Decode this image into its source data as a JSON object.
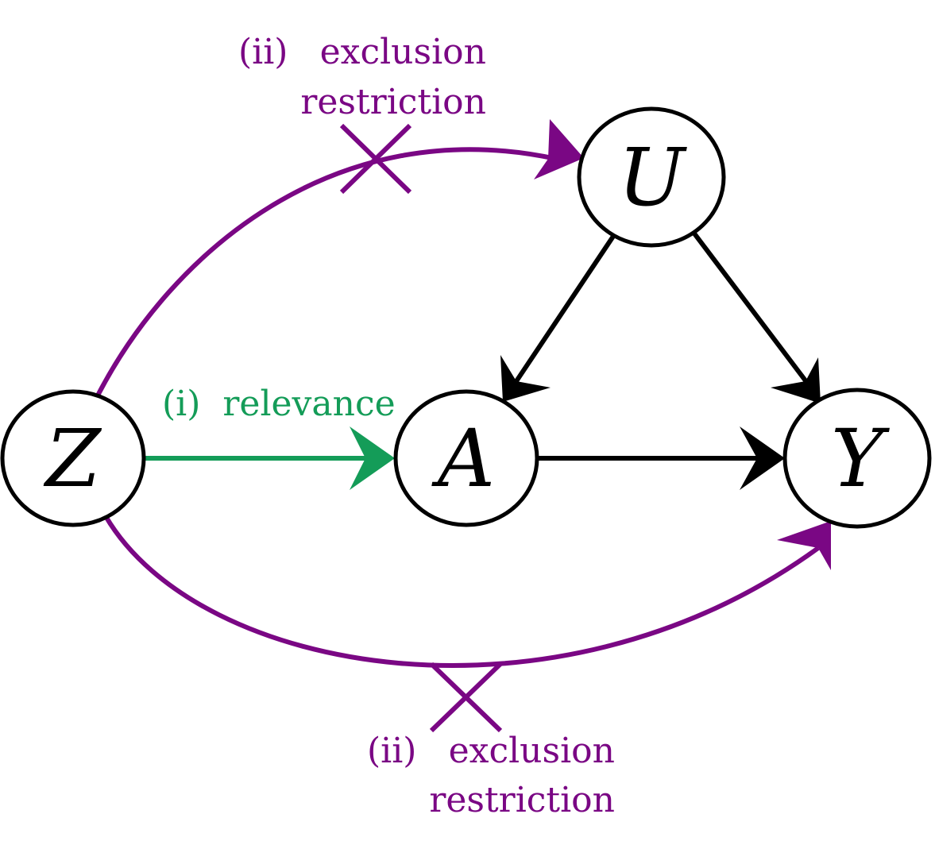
{
  "colors": {
    "black": "#000000",
    "relevance": "#149C58",
    "exclusion": "#7A0784"
  },
  "nodes": {
    "Z": {
      "label": "Z"
    },
    "A": {
      "label": "A"
    },
    "U": {
      "label": "U"
    },
    "Y": {
      "label": "Y"
    }
  },
  "edges": [
    {
      "from": "Z",
      "to": "A",
      "kind": "relevance"
    },
    {
      "from": "Z",
      "to": "U",
      "kind": "exclusion",
      "blocked": true
    },
    {
      "from": "Z",
      "to": "Y",
      "kind": "exclusion",
      "blocked": true
    },
    {
      "from": "U",
      "to": "A",
      "kind": "causal"
    },
    {
      "from": "U",
      "to": "Y",
      "kind": "causal"
    },
    {
      "from": "A",
      "to": "Y",
      "kind": "causal"
    }
  ],
  "annotations": {
    "relevance": "(i)  relevance",
    "exclusion_top_line1_num": "(ii)",
    "exclusion_top_line1_text": "exclusion",
    "exclusion_top_line2": "restriction",
    "exclusion_bottom_line1_num": "(ii)",
    "exclusion_bottom_line1_text": "exclusion",
    "exclusion_bottom_line2": "restriction"
  }
}
